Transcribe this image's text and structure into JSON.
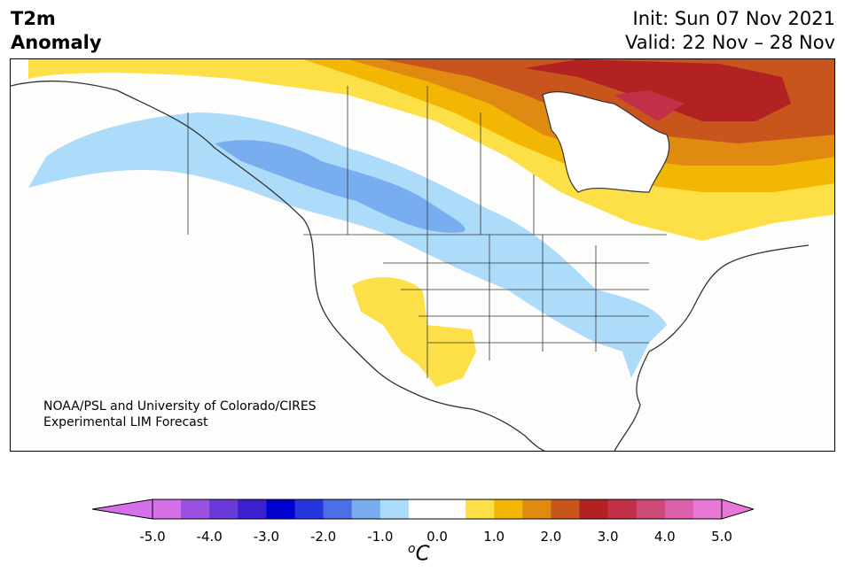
{
  "header": {
    "left_line1": "T2m",
    "left_line2": "Anomaly",
    "right_line1": "Init: Sun 07 Nov 2021",
    "right_line2": "Valid: 22 Nov – 28 Nov"
  },
  "credit": {
    "line1": "NOAA/PSL and University of Colorado/CIRES",
    "line2": "Experimental LIM Forecast"
  },
  "colorbar": {
    "ticks": [
      "-5.0",
      "-4.0",
      "-3.0",
      "-2.0",
      "-1.0",
      "0.0",
      "1.0",
      "2.0",
      "3.0",
      "4.0",
      "5.0"
    ],
    "units_base": "C",
    "units_sup": "o",
    "colors": [
      "#d670e8",
      "#9b51e0",
      "#6a3ad8",
      "#3c20d0",
      "#0000d0",
      "#2436dc",
      "#4c6ee6",
      "#78aef0",
      "#addcfa",
      "#ffffff",
      "#ffffff",
      "#fde047",
      "#f2b705",
      "#e08a12",
      "#c8561c",
      "#b22222",
      "#c23048",
      "#cc4a78",
      "#dc60aa",
      "#e878d6"
    ],
    "under_color": "#d670e8",
    "over_color": "#e878d6"
  }
}
